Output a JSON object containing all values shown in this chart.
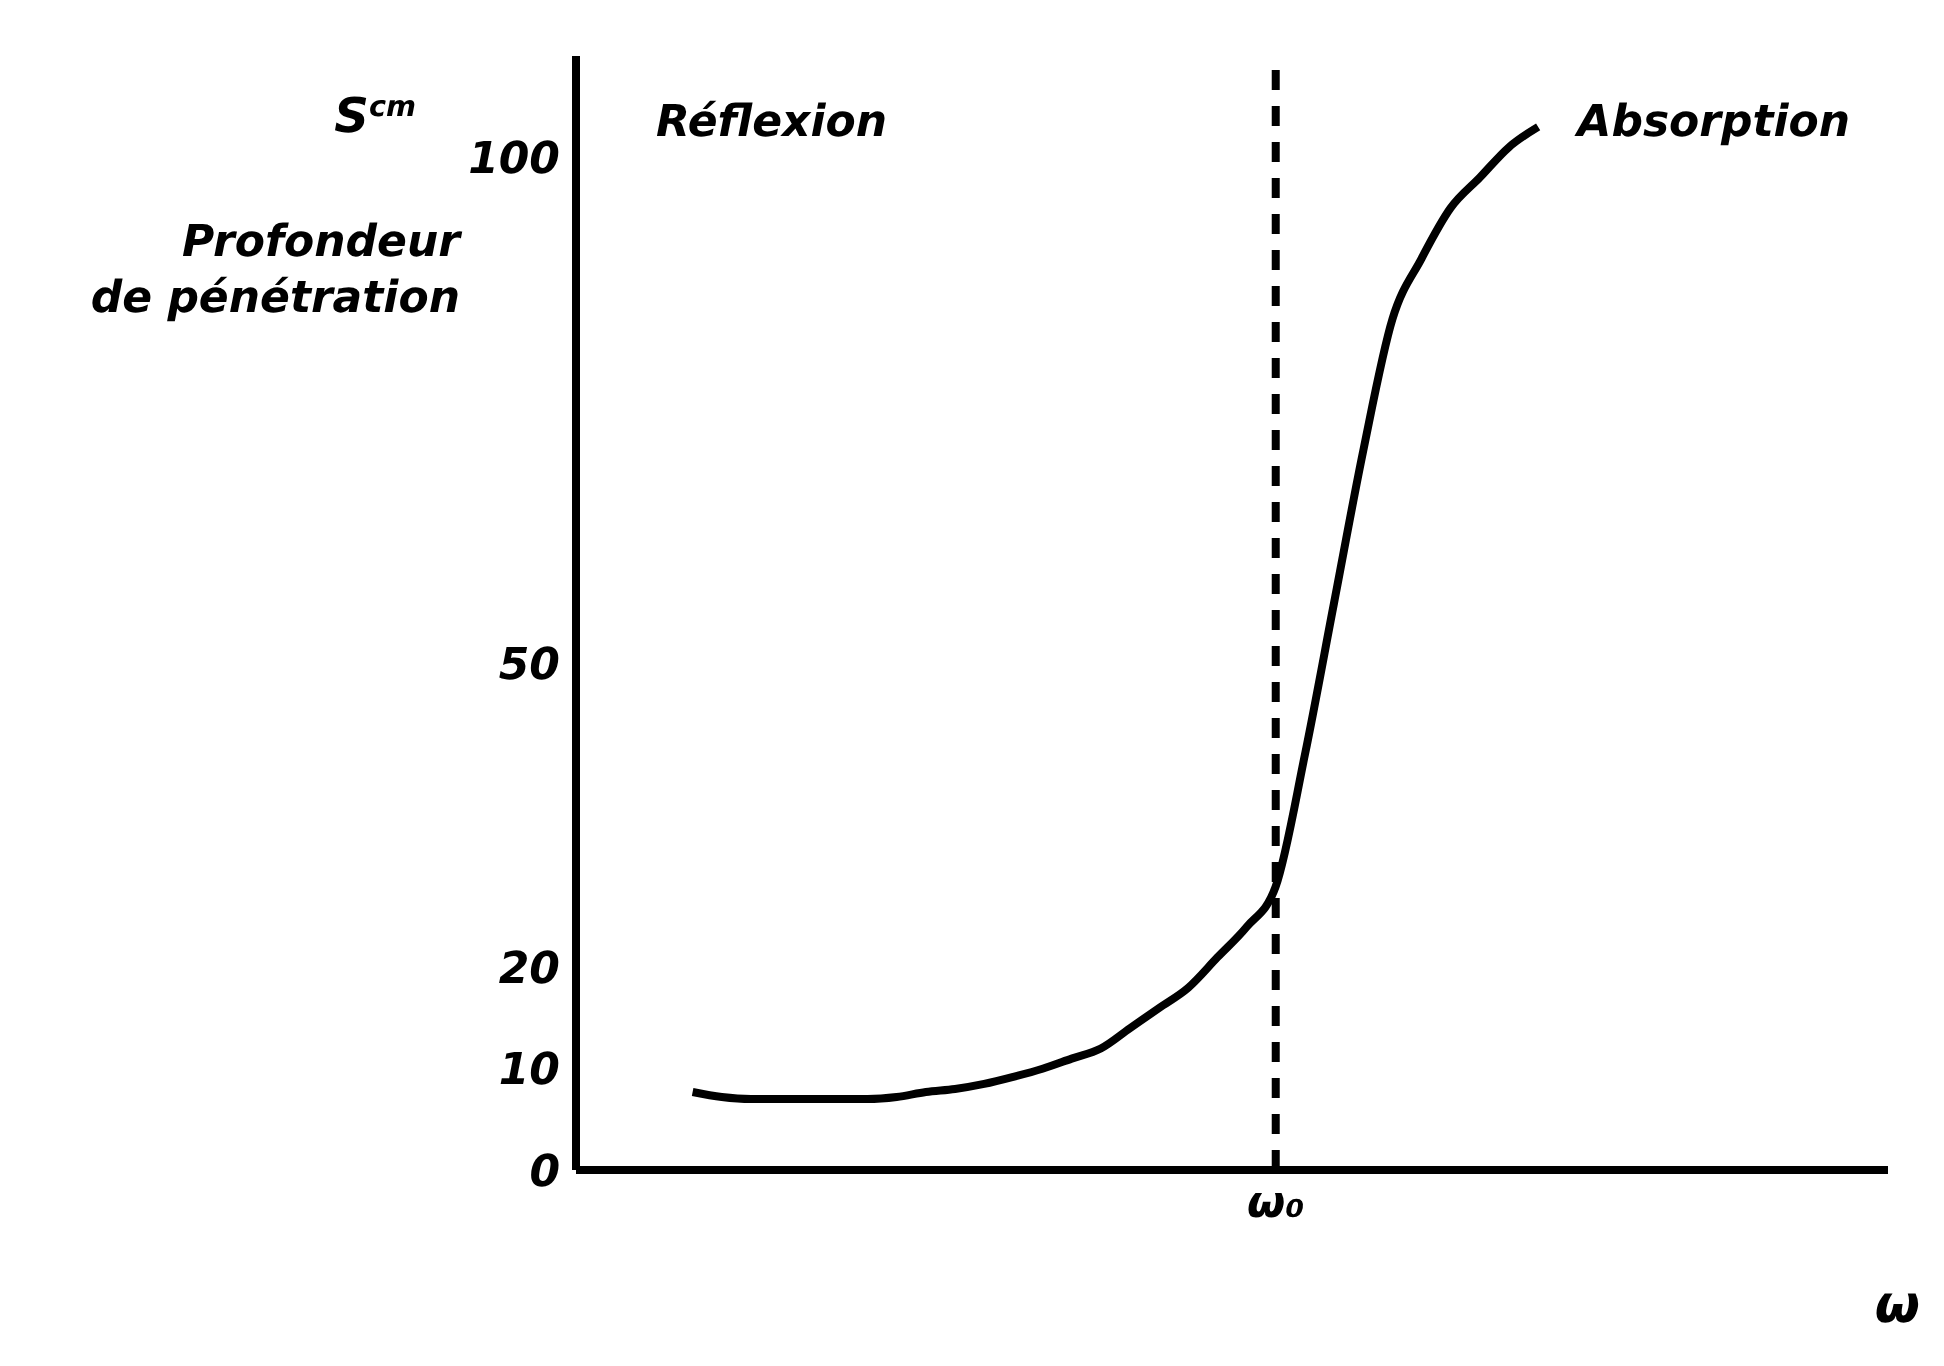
{
  "chart_data": {
    "type": "line",
    "ylabel": "Profondeur de pénétration",
    "xlabel": "ω",
    "annotations": [
      "S$^{cm}$",
      "Réflexion",
      "Absorption"
    ],
    "categories": [
      null,
      null,
      null,
      null,
      null,
      null,
      null,
      null,
      null,
      null,
      null,
      null,
      null,
      null,
      null,
      null,
      null,
      null,
      null,
      null,
      null,
      null,
      null,
      null,
      "ω₀",
      null,
      null,
      null,
      null,
      null,
      null,
      null,
      null,
      null,
      null,
      null,
      null,
      null,
      null,
      null,
      null,
      null,
      null,
      null,
      null,
      null
    ],
    "series": [
      {
        "color": "#000000",
        "values": [
          null,
          null,
          null,
          null,
          7.7,
          7.2,
          7,
          7,
          7,
          7,
          7,
          7.2,
          7.7,
          8,
          8.5,
          9.2,
          10,
          11,
          12,
          14,
          16,
          18,
          21,
          24,
          28,
          41,
          56,
          71,
          84,
          90,
          95,
          98,
          101,
          103,
          null,
          null,
          null,
          null,
          null,
          null,
          null,
          null,
          null,
          null,
          null,
          null
        ]
      }
    ],
    "ylim": [
      0,
      110
    ],
    "yticks": [
      0,
      10,
      20,
      50,
      100
    ],
    "ref_lines": [
      {
        "axis": "x",
        "value": "ω₀",
        "line_style": "dashed",
        "color": "#000000"
      }
    ],
    "grid": false,
    "legend": false,
    "marker": "none",
    "line_style": "solid"
  }
}
